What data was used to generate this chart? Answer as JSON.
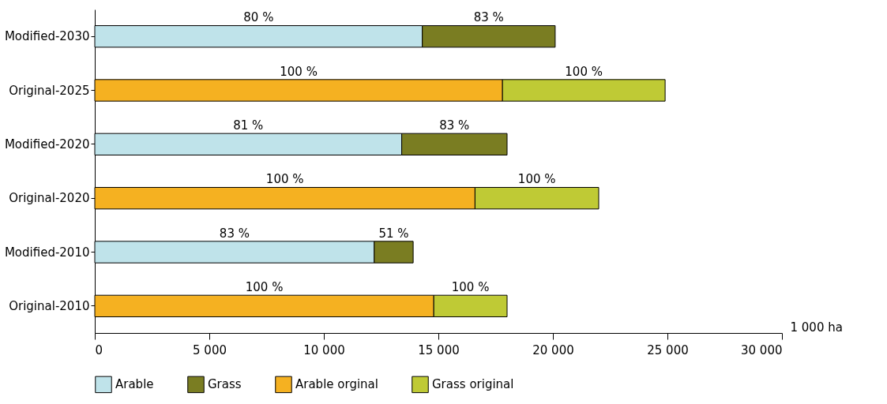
{
  "chart_data": {
    "type": "bar",
    "orientation": "horizontal",
    "stacked": true,
    "xlabel": "1 000 ha",
    "categories": [
      "Modified-2030",
      "Original-2025",
      "Modified-2020",
      "Original-2020",
      "Modified-2010",
      "Original-2010"
    ],
    "xlim": [
      0,
      30000
    ],
    "xticks": [
      0,
      {
        "value": 5000,
        "label": "5 000"
      },
      {
        "value": 10000,
        "label": "10 000"
      },
      {
        "value": 15000,
        "label": "15 000"
      },
      {
        "value": 20000,
        "label": "20 000"
      },
      {
        "value": 25000,
        "label": "25 000"
      },
      {
        "value": 30000,
        "label": "30 000"
      }
    ],
    "grid": false,
    "legend": "bottom",
    "series": [
      {
        "name": "Arable",
        "color": "#bfe3ea",
        "values": [
          14300,
          null,
          13400,
          null,
          12200,
          null
        ]
      },
      {
        "name": "Grass",
        "color": "#7a7d22",
        "values": [
          5800,
          null,
          4600,
          null,
          1700,
          null
        ]
      },
      {
        "name": "Arable orginal",
        "color": "#f5b121",
        "values": [
          null,
          17800,
          null,
          16600,
          null,
          14800
        ]
      },
      {
        "name": "Grass original",
        "color": "#bfca35",
        "values": [
          null,
          7100,
          null,
          5400,
          null,
          3200
        ]
      }
    ],
    "annotations": [
      "80 %",
      "83 %",
      "100 %",
      "100 %",
      "81 %",
      "83 %",
      "100 %",
      "100 %",
      "83 %",
      "51 %",
      "100 %",
      "100 %"
    ]
  }
}
